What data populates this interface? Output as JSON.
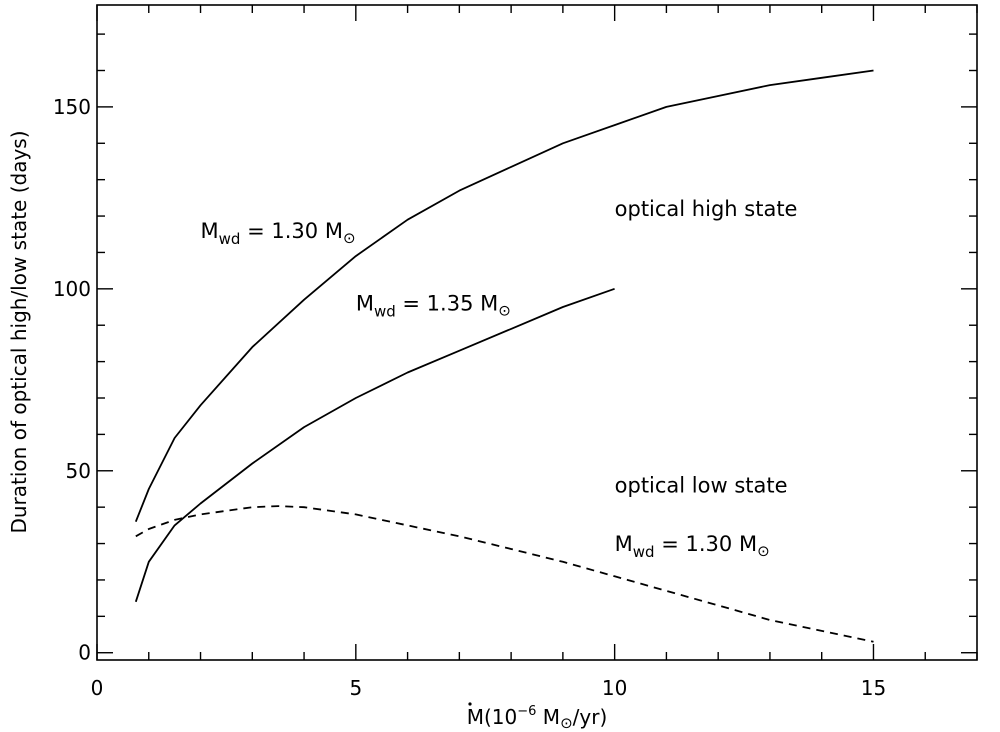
{
  "chart_data": {
    "type": "line",
    "title": "",
    "xlabel": {
      "main": "M",
      "paren_open": "(10",
      "exponent": "−6",
      "unit": " M",
      "unit_symbol": "⊙",
      "unit_tail": "/yr)"
    },
    "ylabel": "Duration of optical high/low state (days)",
    "xlim": [
      0,
      17
    ],
    "ylim": [
      -2,
      178
    ],
    "xticks": [
      0,
      5,
      10,
      15
    ],
    "yticks": [
      0,
      50,
      100,
      150
    ],
    "x_minor_step": 1,
    "y_minor_step": 10,
    "grid": false,
    "series": [
      {
        "style": "solid",
        "points": [
          [
            0.75,
            36
          ],
          [
            1.0,
            45
          ],
          [
            1.5,
            59
          ],
          [
            2.0,
            68
          ],
          [
            3.0,
            84
          ],
          [
            4.0,
            97
          ],
          [
            5.0,
            109
          ],
          [
            6.0,
            119
          ],
          [
            7.0,
            127
          ],
          [
            8.0,
            133.5
          ],
          [
            9.0,
            140
          ],
          [
            10.0,
            145
          ],
          [
            11.0,
            150
          ],
          [
            12.0,
            153
          ],
          [
            13.0,
            156
          ],
          [
            14.0,
            158
          ],
          [
            15.0,
            160
          ]
        ]
      },
      {
        "style": "solid",
        "points": [
          [
            0.75,
            14
          ],
          [
            1.0,
            25
          ],
          [
            1.5,
            35
          ],
          [
            2.0,
            41
          ],
          [
            3.0,
            52
          ],
          [
            4.0,
            62
          ],
          [
            5.0,
            70
          ],
          [
            6.0,
            77
          ],
          [
            7.0,
            83
          ],
          [
            8.0,
            89
          ],
          [
            9.0,
            95
          ],
          [
            10.0,
            100
          ]
        ]
      },
      {
        "style": "dashed",
        "points": [
          [
            0.75,
            32
          ],
          [
            1.0,
            34
          ],
          [
            1.5,
            36.5
          ],
          [
            2.0,
            38
          ],
          [
            3.0,
            40
          ],
          [
            3.5,
            40.3
          ],
          [
            4.0,
            40
          ],
          [
            5.0,
            38
          ],
          [
            6.0,
            35
          ],
          [
            7.0,
            32
          ],
          [
            8.0,
            28.5
          ],
          [
            9.0,
            25
          ],
          [
            10.0,
            21
          ],
          [
            11.0,
            17
          ],
          [
            12.0,
            13
          ],
          [
            13.0,
            9
          ],
          [
            14.0,
            6
          ],
          [
            15.0,
            3
          ]
        ]
      }
    ],
    "annotations": [
      {
        "id": "mwd-130-upper",
        "prefix": "M",
        "sub": "wd",
        "text": " = 1.30 M",
        "symbol": "⊙",
        "x": 2.0,
        "y": 114
      },
      {
        "id": "mwd-135",
        "prefix": "M",
        "sub": "wd",
        "text": " = 1.35 M",
        "symbol": "⊙",
        "x": 5.0,
        "y": 94
      },
      {
        "id": "optical-high-state",
        "text": "optical high state",
        "x": 10.0,
        "y": 120
      },
      {
        "id": "optical-low-state",
        "text": "optical low state",
        "x": 10.0,
        "y": 44
      },
      {
        "id": "mwd-130-lower",
        "prefix": "M",
        "sub": "wd",
        "text": " = 1.30 M",
        "symbol": "⊙",
        "x": 10.0,
        "y": 28
      }
    ]
  }
}
